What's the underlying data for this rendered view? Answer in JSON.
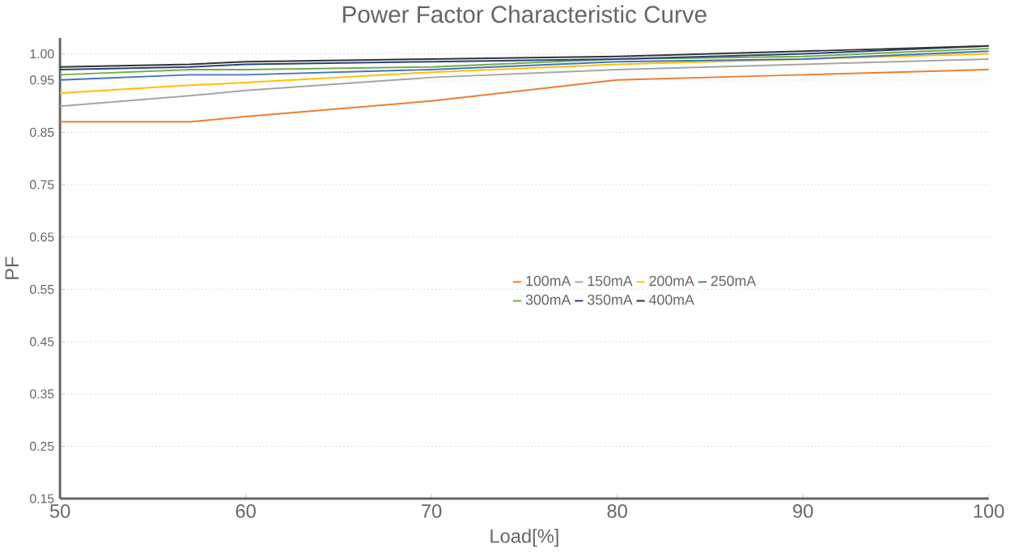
{
  "chart_data": {
    "type": "line",
    "title": "Power Factor Characteristic Curve",
    "xlabel": "Load[%]",
    "ylabel": "PF",
    "x": [
      50,
      57,
      60,
      70,
      80,
      90,
      100
    ],
    "series": [
      {
        "name": "100mA",
        "color": "#ed7d31",
        "values": [
          0.87,
          0.87,
          0.88,
          0.91,
          0.95,
          0.96,
          0.97
        ]
      },
      {
        "name": "150mA",
        "color": "#a5a5a5",
        "values": [
          0.9,
          0.92,
          0.93,
          0.955,
          0.97,
          0.98,
          0.99
        ]
      },
      {
        "name": "200mA",
        "color": "#ffc000",
        "values": [
          0.925,
          0.94,
          0.945,
          0.965,
          0.98,
          0.99,
          1.0
        ]
      },
      {
        "name": "250mA",
        "color": "#4472c4",
        "values": [
          0.95,
          0.96,
          0.96,
          0.97,
          0.985,
          0.99,
          1.005
        ]
      },
      {
        "name": "300mA",
        "color": "#70ad47",
        "values": [
          0.96,
          0.97,
          0.97,
          0.975,
          0.99,
          0.995,
          1.01
        ]
      },
      {
        "name": "350mA",
        "color": "#264478",
        "values": [
          0.97,
          0.975,
          0.98,
          0.985,
          0.99,
          1.0,
          1.015
        ]
      },
      {
        "name": "400mA",
        "color": "#333333",
        "values": [
          0.975,
          0.98,
          0.985,
          0.99,
          0.995,
          1.005,
          1.015
        ]
      }
    ],
    "xlim": [
      50,
      100
    ],
    "xticks": [
      50,
      60,
      70,
      80,
      90,
      100
    ],
    "ylim": [
      0.15,
      1.03
    ],
    "yticks": [
      {
        "value": 1.0,
        "label": "1.00"
      },
      0.95,
      0.85,
      0.75,
      0.65,
      0.55,
      0.45,
      0.35,
      0.25,
      0.15
    ],
    "grid": "y",
    "legend": "center",
    "marker": "none",
    "line_style": "solid"
  }
}
